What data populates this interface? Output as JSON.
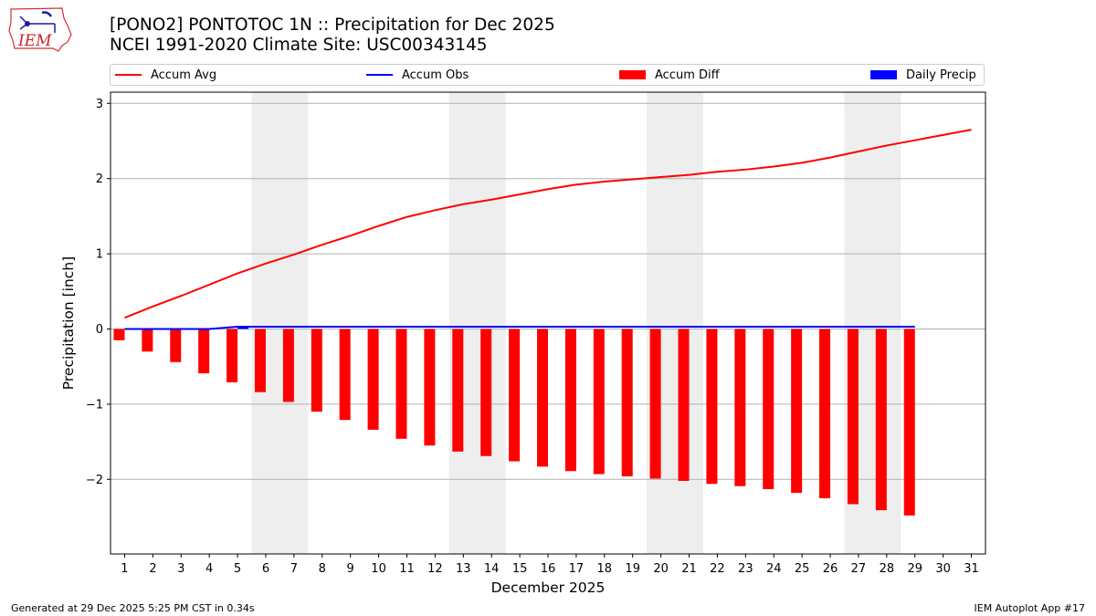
{
  "header": {
    "title_line1": "[PONO2] PONTOTOC 1N :: Precipitation for Dec 2025",
    "title_line2": "NCEI 1991-2020 Climate Site: USC00343145"
  },
  "logo": {
    "text": "IEM"
  },
  "legend": {
    "items": [
      {
        "label": "Accum Avg",
        "kind": "line",
        "color": "#ff0000"
      },
      {
        "label": "Accum Obs",
        "kind": "line",
        "color": "#0000ff"
      },
      {
        "label": "Accum Diff",
        "kind": "patch",
        "color": "#ff0000"
      },
      {
        "label": "Daily Precip",
        "kind": "patch",
        "color": "#0000ff"
      }
    ]
  },
  "footer": {
    "left": "Generated at 29 Dec 2025 5:25 PM CST in 0.34s",
    "right": "IEM Autoplot App #17"
  },
  "chart_data": {
    "type": "bar",
    "title": "[PONO2] PONTOTOC 1N :: Precipitation for Dec 2025",
    "xlabel": "December 2025",
    "ylabel": "Precipitation [inch]",
    "xlim": [
      0.5,
      31.5
    ],
    "ylim": [
      -3.0,
      3.15
    ],
    "yticks": [
      3,
      2,
      1,
      0,
      -1,
      -2
    ],
    "ytick_labels": [
      "3",
      "2",
      "1",
      "0",
      "−1",
      "−2"
    ],
    "grid": "horizontal",
    "legend_position": "top",
    "weekend_shading": [
      [
        5.5,
        7.5
      ],
      [
        12.5,
        14.5
      ],
      [
        19.5,
        21.5
      ],
      [
        26.5,
        28.5
      ]
    ],
    "days": [
      1,
      2,
      3,
      4,
      5,
      6,
      7,
      8,
      9,
      10,
      11,
      12,
      13,
      14,
      15,
      16,
      17,
      18,
      19,
      20,
      21,
      22,
      23,
      24,
      25,
      26,
      27,
      28,
      29,
      30,
      31
    ],
    "accum_avg": [
      0.15,
      0.3,
      0.44,
      0.59,
      0.74,
      0.87,
      0.99,
      1.12,
      1.24,
      1.37,
      1.49,
      1.58,
      1.66,
      1.72,
      1.79,
      1.86,
      1.92,
      1.96,
      1.99,
      2.02,
      2.05,
      2.09,
      2.12,
      2.16,
      2.21,
      2.28,
      2.36,
      2.44,
      2.51,
      2.58,
      2.65
    ],
    "accum_obs": [
      0.0,
      0.0,
      0.0,
      0.0,
      0.03,
      0.03,
      0.03,
      0.03,
      0.03,
      0.03,
      0.03,
      0.03,
      0.03,
      0.03,
      0.03,
      0.03,
      0.03,
      0.03,
      0.03,
      0.03,
      0.03,
      0.03,
      0.03,
      0.03,
      0.03,
      0.03,
      0.03,
      0.03,
      0.03
    ],
    "accum_diff": [
      -0.15,
      -0.3,
      -0.44,
      -0.59,
      -0.71,
      -0.84,
      -0.97,
      -1.1,
      -1.21,
      -1.34,
      -1.46,
      -1.55,
      -1.63,
      -1.69,
      -1.76,
      -1.83,
      -1.89,
      -1.93,
      -1.96,
      -1.99,
      -2.02,
      -2.06,
      -2.09,
      -2.13,
      -2.18,
      -2.25,
      -2.33,
      -2.41,
      -2.48
    ],
    "daily_precip": [
      0,
      0,
      0,
      0,
      0.03,
      0,
      0,
      0,
      0,
      0,
      0,
      0,
      0,
      0,
      0,
      0,
      0,
      0,
      0,
      0,
      0,
      0,
      0,
      0,
      0,
      0,
      0,
      0,
      0
    ],
    "series": [
      {
        "name": "Accum Avg",
        "kind": "line",
        "color": "#ff0000"
      },
      {
        "name": "Accum Obs",
        "kind": "line",
        "color": "#0000ff"
      },
      {
        "name": "Accum Diff",
        "kind": "bar",
        "color": "#ff0000"
      },
      {
        "name": "Daily Precip",
        "kind": "bar",
        "color": "#0000ff"
      }
    ]
  }
}
